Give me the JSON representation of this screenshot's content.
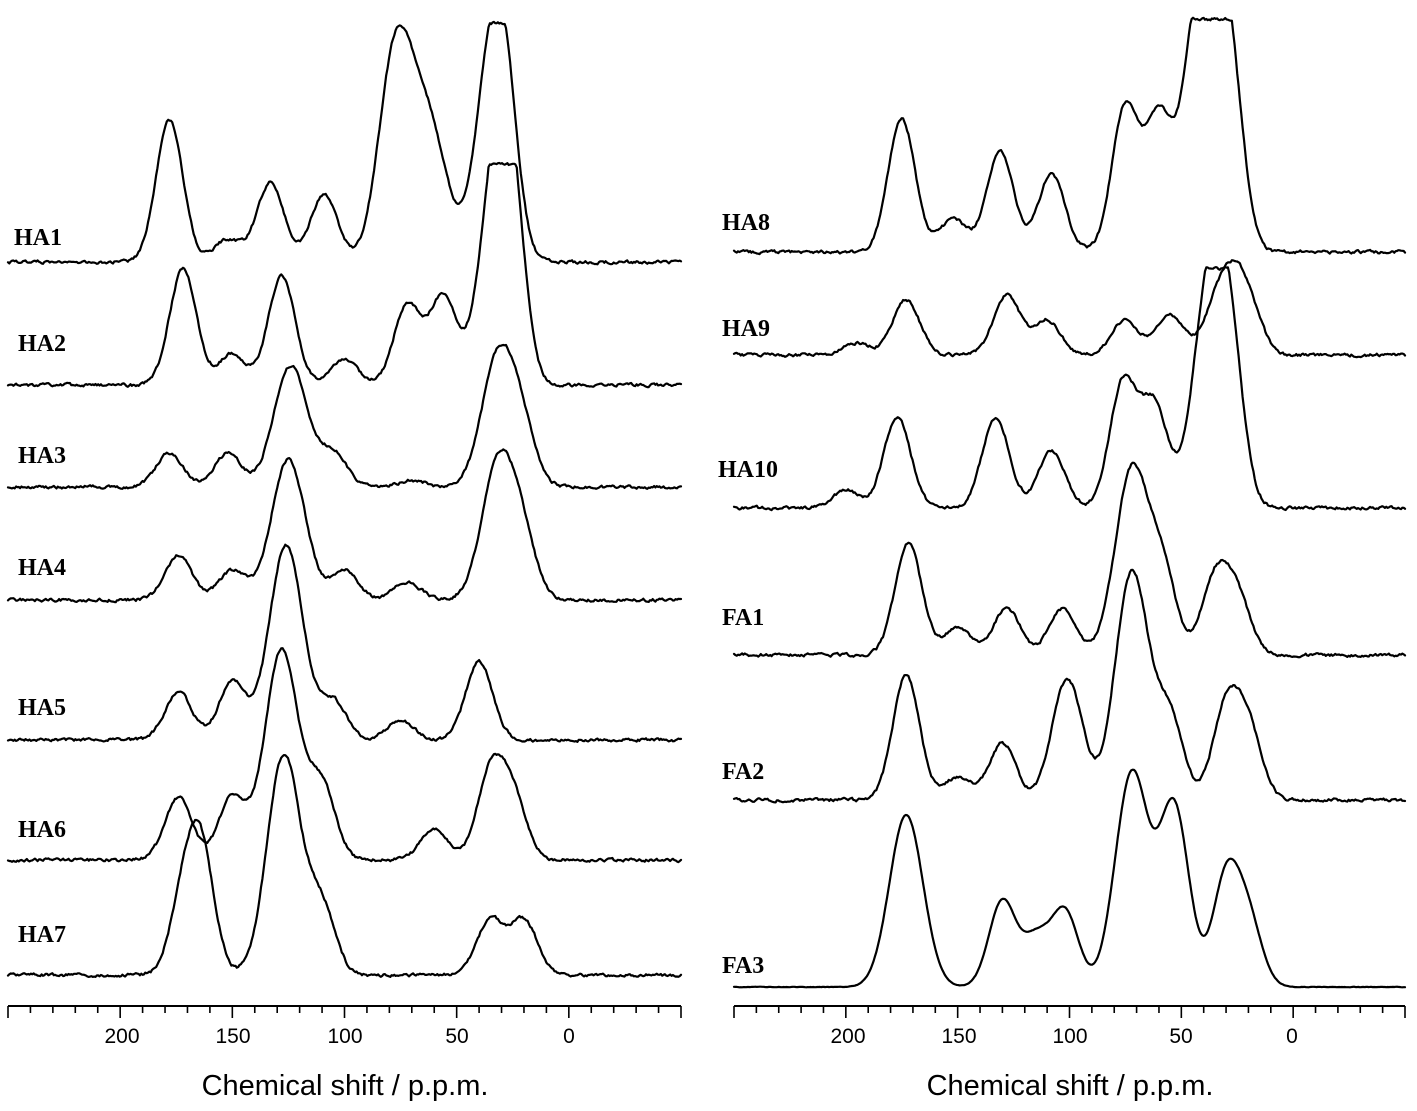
{
  "chart_data": [
    {
      "type": "line",
      "xlabel": "Chemical shift / p.p.m.",
      "xlim": [
        250,
        -50
      ],
      "x_reversed": true,
      "xticks": [
        200,
        150,
        100,
        50,
        0
      ],
      "grid": false,
      "series": [
        {
          "name": "HA1",
          "peaks": [
            [
              178,
              0.62
            ],
            [
              133,
              0.35
            ],
            [
              152,
              0.1
            ],
            [
              109,
              0.3
            ],
            [
              77,
              0.95
            ],
            [
              66,
              0.35
            ],
            [
              58,
              0.35
            ],
            [
              35,
              0.75
            ],
            [
              29,
              0.55
            ]
          ]
        },
        {
          "name": "HA2",
          "peaks": [
            [
              172,
              0.55
            ],
            [
              128,
              0.52
            ],
            [
              150,
              0.15
            ],
            [
              100,
              0.12
            ],
            [
              72,
              0.38
            ],
            [
              56,
              0.42
            ],
            [
              32,
              1.0
            ],
            [
              26,
              0.6
            ]
          ]
        },
        {
          "name": "HA3",
          "peaks": [
            [
              178,
              0.25
            ],
            [
              152,
              0.25
            ],
            [
              124,
              0.9
            ],
            [
              105,
              0.25
            ],
            [
              70,
              0.05
            ],
            [
              31,
              1.0
            ],
            [
              20,
              0.3
            ]
          ]
        },
        {
          "name": "HA4",
          "peaks": [
            [
              174,
              0.3
            ],
            [
              150,
              0.2
            ],
            [
              125,
              0.95
            ],
            [
              100,
              0.2
            ],
            [
              72,
              0.12
            ],
            [
              31,
              0.95
            ],
            [
              20,
              0.3
            ]
          ]
        },
        {
          "name": "HA5",
          "peaks": [
            [
              174,
              0.25
            ],
            [
              150,
              0.3
            ],
            [
              126,
              1.0
            ],
            [
              105,
              0.2
            ],
            [
              75,
              0.1
            ],
            [
              40,
              0.4
            ]
          ]
        },
        {
          "name": "HA6",
          "peaks": [
            [
              174,
              0.3
            ],
            [
              150,
              0.3
            ],
            [
              128,
              1.0
            ],
            [
              110,
              0.35
            ],
            [
              60,
              0.15
            ],
            [
              35,
              0.4
            ],
            [
              25,
              0.3
            ]
          ]
        },
        {
          "name": "HA7",
          "peaks": [
            [
              172,
              0.3
            ],
            [
              164,
              0.55
            ],
            [
              127,
              1.0
            ],
            [
              110,
              0.3
            ],
            [
              35,
              0.25
            ],
            [
              20,
              0.25
            ]
          ]
        }
      ]
    },
    {
      "type": "line",
      "xlabel": "Chemical shift / p.p.m.",
      "xlim": [
        250,
        -50
      ],
      "x_reversed": true,
      "xticks": [
        200,
        150,
        100,
        50,
        0
      ],
      "grid": false,
      "series": [
        {
          "name": "HA8",
          "peaks": [
            [
              175,
              0.6
            ],
            [
              152,
              0.15
            ],
            [
              131,
              0.45
            ],
            [
              108,
              0.35
            ],
            [
              75,
              0.65
            ],
            [
              60,
              0.6
            ],
            [
              45,
              0.5
            ],
            [
              37,
              1.0
            ],
            [
              28,
              0.6
            ]
          ]
        },
        {
          "name": "HA9",
          "peaks": [
            [
              173,
              0.55
            ],
            [
              195,
              0.12
            ],
            [
              128,
              0.6
            ],
            [
              110,
              0.35
            ],
            [
              75,
              0.35
            ],
            [
              55,
              0.4
            ],
            [
              30,
              0.8
            ],
            [
              20,
              0.4
            ]
          ]
        },
        {
          "name": "HA10",
          "peaks": [
            [
              177,
              0.4
            ],
            [
              200,
              0.08
            ],
            [
              133,
              0.4
            ],
            [
              108,
              0.25
            ],
            [
              76,
              0.55
            ],
            [
              62,
              0.45
            ],
            [
              37,
              1.0
            ],
            [
              28,
              0.5
            ]
          ]
        },
        {
          "name": "FA1",
          "peaks": [
            [
              172,
              0.6
            ],
            [
              150,
              0.15
            ],
            [
              128,
              0.25
            ],
            [
              103,
              0.25
            ],
            [
              72,
              1.0
            ],
            [
              58,
              0.4
            ],
            [
              35,
              0.4
            ],
            [
              25,
              0.3
            ]
          ]
        },
        {
          "name": "FA2",
          "peaks": [
            [
              173,
              0.55
            ],
            [
              150,
              0.1
            ],
            [
              130,
              0.25
            ],
            [
              104,
              0.3
            ],
            [
              98,
              0.3
            ],
            [
              72,
              1.0
            ],
            [
              55,
              0.35
            ],
            [
              30,
              0.4
            ],
            [
              20,
              0.3
            ]
          ]
        },
        {
          "name": "FA3",
          "peaks": [
            [
              173,
              0.8
            ],
            [
              130,
              0.4
            ],
            [
              115,
              0.22
            ],
            [
              102,
              0.35
            ],
            [
              72,
              1.0
            ],
            [
              55,
              0.55
            ],
            [
              50,
              0.35
            ],
            [
              30,
              0.5
            ],
            [
              20,
              0.3
            ]
          ]
        }
      ]
    }
  ]
}
